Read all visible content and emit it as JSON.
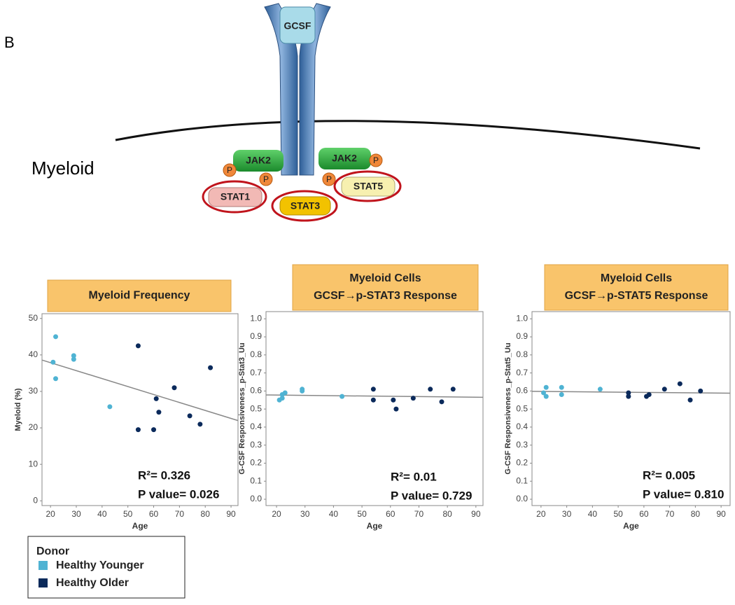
{
  "diagram": {
    "panel": "B",
    "cell": "Myeloid",
    "ligand": "GCSF",
    "kinases": [
      "JAK2",
      "JAK2"
    ],
    "phospho": [
      "P",
      "P",
      "P",
      "P"
    ],
    "stats": [
      "STAT1",
      "STAT3",
      "STAT5"
    ]
  },
  "legend": {
    "title": "Donor"
  },
  "chart_data": [
    {
      "type": "scatter",
      "title": "Myeloid Frequency",
      "x_label": "Age",
      "y_label": "Myeloid (%)",
      "xlim": [
        16.7,
        92.7
      ],
      "ylim": [
        -1.3,
        51.3
      ],
      "xticks": [
        20,
        30,
        40,
        50,
        60,
        70,
        80,
        90
      ],
      "yticks": [
        0,
        10,
        20,
        30,
        40,
        50
      ],
      "series": [
        {
          "name": "Healthy Younger",
          "color": "#4fb3d3",
          "x": [
            21,
            22,
            22,
            29,
            29,
            43
          ],
          "values": [
            38,
            45,
            33.5,
            39.8,
            38.8,
            25.8
          ]
        },
        {
          "name": "Healthy Older",
          "color": "#0b2a5b",
          "x": [
            54,
            54,
            60,
            61,
            62,
            68,
            74,
            78,
            82
          ],
          "values": [
            42.5,
            19.5,
            19.5,
            28,
            24.3,
            31,
            23.3,
            21,
            36.5
          ]
        }
      ],
      "fit": {
        "x": [
          16.7,
          92.7
        ],
        "values": [
          38.6,
          22
        ]
      },
      "annotations": [
        "R²= 0.326",
        "P value= 0.026"
      ]
    },
    {
      "type": "scatter",
      "title": "Myeloid Cells",
      "subtitle": "GCSF→p-STAT3 Response",
      "x_label": "Age",
      "y_label": "G-CSF Responsiveness_p-Stat3_Uu",
      "xlim": [
        16.3,
        92.5
      ],
      "ylim": [
        -0.035,
        1.04
      ],
      "xticks": [
        20,
        30,
        40,
        50,
        60,
        70,
        80,
        90
      ],
      "yticks": [
        {
          "value": 0,
          "label": "0.0"
        },
        0.1,
        0.2,
        0.3,
        0.4,
        0.5,
        0.6,
        0.7,
        0.8,
        0.9,
        {
          "value": 1,
          "label": "1.0"
        }
      ],
      "series": [
        {
          "name": "Healthy Younger",
          "color": "#4fb3d3",
          "x": [
            21,
            22,
            22,
            23,
            29,
            29,
            43
          ],
          "values": [
            0.55,
            0.56,
            0.58,
            0.59,
            0.6,
            0.61,
            0.57
          ]
        },
        {
          "name": "Healthy Older",
          "color": "#0b2a5b",
          "x": [
            54,
            54,
            61,
            62,
            68,
            74,
            78,
            82
          ],
          "values": [
            0.61,
            0.55,
            0.55,
            0.5,
            0.56,
            0.61,
            0.54,
            0.61
          ]
        }
      ],
      "fit": {
        "x": [
          16.3,
          92.5
        ],
        "values": [
          0.578,
          0.565
        ]
      },
      "annotations": [
        "R²= 0.01",
        "P value= 0.729"
      ]
    },
    {
      "type": "scatter",
      "title": "Myeloid Cells",
      "subtitle": "GCSF→p-STAT5 Response",
      "x_label": "Age",
      "y_label": "G-CSF Responsiveness_p-Stat5_Uu",
      "xlim": [
        16.5,
        93.5
      ],
      "ylim": [
        -0.035,
        1.04
      ],
      "xticks": [
        20,
        30,
        40,
        50,
        60,
        70,
        80,
        90
      ],
      "yticks": [
        {
          "value": 0,
          "label": "0.0"
        },
        0.1,
        0.2,
        0.3,
        0.4,
        0.5,
        0.6,
        0.7,
        0.8,
        0.9,
        {
          "value": 1,
          "label": "1.0"
        }
      ],
      "series": [
        {
          "name": "Healthy Younger",
          "color": "#4fb3d3",
          "x": [
            21,
            22,
            22,
            28,
            28,
            43
          ],
          "values": [
            0.59,
            0.62,
            0.57,
            0.62,
            0.58,
            0.61
          ]
        },
        {
          "name": "Healthy Older",
          "color": "#0b2a5b",
          "x": [
            54,
            54,
            61,
            62,
            68,
            74,
            78,
            82
          ],
          "values": [
            0.59,
            0.57,
            0.57,
            0.58,
            0.61,
            0.64,
            0.55,
            0.6
          ]
        }
      ],
      "fit": {
        "x": [
          16.5,
          93.5
        ],
        "values": [
          0.598,
          0.588
        ]
      },
      "annotations": [
        "R²= 0.005",
        "P value= 0.810"
      ]
    }
  ]
}
